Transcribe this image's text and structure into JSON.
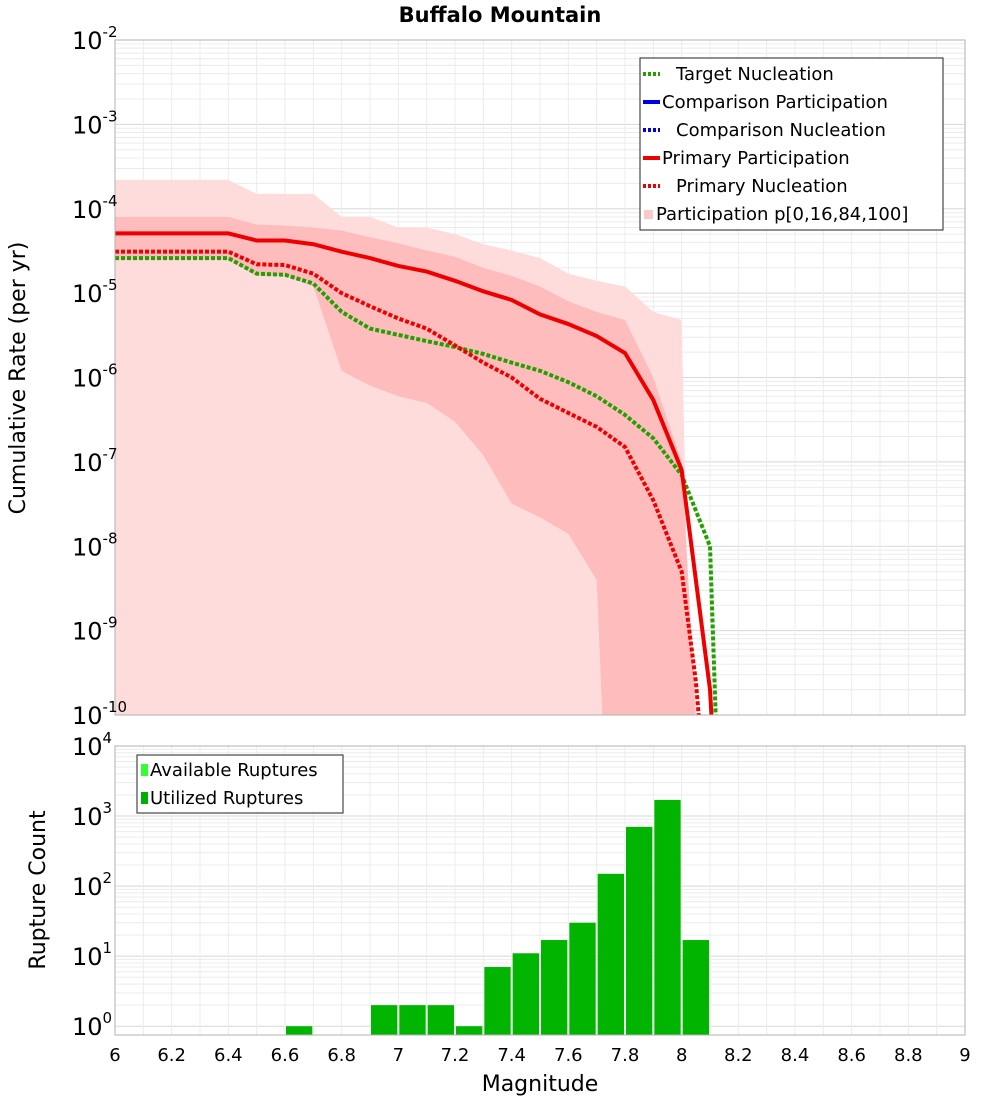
{
  "chart_data": [
    {
      "type": "line",
      "title": "Buffalo Mountain",
      "ylabel": "Cumulative Rate (per yr)",
      "yscale": "log",
      "xlim": [
        6,
        9
      ],
      "ylim_exp": [
        -10,
        -2
      ],
      "y_tick_exponents": [
        "-2",
        "-3",
        "-4",
        "-5",
        "-6",
        "-7",
        "-8",
        "-9",
        "-10"
      ],
      "colors": {
        "target": "#22a000",
        "comparison": "#0000e6",
        "primary": "#ee0000",
        "band_outer": "#ffdcdc",
        "band_inner": "#ffbcbc"
      },
      "legend": [
        {
          "label": "Target Nucleation",
          "style": "dotted",
          "color": "#22a000"
        },
        {
          "label": "Comparison Participation",
          "style": "solid",
          "color": "#0000e6"
        },
        {
          "label": "Comparison Nucleation",
          "style": "dotted",
          "color": "#0000e6"
        },
        {
          "label": "Primary Participation",
          "style": "solid",
          "color": "#ee0000"
        },
        {
          "label": "Primary Nucleation",
          "style": "dotted",
          "color": "#ee0000"
        },
        {
          "label": "Participation p[0,16,84,100]",
          "style": "band",
          "color": "#ffc8c8"
        }
      ],
      "series": [
        {
          "name": "Target Nucleation",
          "style": "dotted",
          "color": "#22a000",
          "points": [
            [
              6.0,
              2.6e-05
            ],
            [
              6.4,
              2.6e-05
            ],
            [
              6.5,
              1.7e-05
            ],
            [
              6.6,
              1.65e-05
            ],
            [
              6.7,
              1.3e-05
            ],
            [
              6.8,
              6e-06
            ],
            [
              6.9,
              3.8e-06
            ],
            [
              7.0,
              3.2e-06
            ],
            [
              7.1,
              2.7e-06
            ],
            [
              7.2,
              2.3e-06
            ],
            [
              7.3,
              1.9e-06
            ],
            [
              7.4,
              1.5e-06
            ],
            [
              7.5,
              1.2e-06
            ],
            [
              7.6,
              8.8e-07
            ],
            [
              7.7,
              6e-07
            ],
            [
              7.8,
              3.6e-07
            ],
            [
              7.9,
              1.9e-07
            ],
            [
              8.0,
              7e-08
            ],
            [
              8.1,
              1e-08
            ],
            [
              8.12,
              1e-10
            ]
          ]
        },
        {
          "name": "Primary Participation",
          "style": "solid",
          "color": "#ee0000",
          "points": [
            [
              6.0,
              5.1e-05
            ],
            [
              6.4,
              5.1e-05
            ],
            [
              6.5,
              4.2e-05
            ],
            [
              6.6,
              4.2e-05
            ],
            [
              6.7,
              3.8e-05
            ],
            [
              6.8,
              3.1e-05
            ],
            [
              6.9,
              2.6e-05
            ],
            [
              7.0,
              2.1e-05
            ],
            [
              7.1,
              1.8e-05
            ],
            [
              7.2,
              1.4e-05
            ],
            [
              7.3,
              1.05e-05
            ],
            [
              7.4,
              8.3e-06
            ],
            [
              7.5,
              5.6e-06
            ],
            [
              7.6,
              4.3e-06
            ],
            [
              7.7,
              3.1e-06
            ],
            [
              7.8,
              1.95e-06
            ],
            [
              7.9,
              5.4e-07
            ],
            [
              8.0,
              8e-08
            ],
            [
              8.1,
              2e-10
            ],
            [
              8.105,
              1e-10
            ]
          ]
        },
        {
          "name": "Primary Nucleation",
          "style": "dotted",
          "color": "#ee0000",
          "points": [
            [
              6.0,
              3.1e-05
            ],
            [
              6.4,
              3.1e-05
            ],
            [
              6.5,
              2.2e-05
            ],
            [
              6.6,
              2.15e-05
            ],
            [
              6.7,
              1.7e-05
            ],
            [
              6.8,
              1e-05
            ],
            [
              6.9,
              7e-06
            ],
            [
              7.0,
              5e-06
            ],
            [
              7.1,
              3.8e-06
            ],
            [
              7.2,
              2.4e-06
            ],
            [
              7.3,
              1.5e-06
            ],
            [
              7.4,
              1e-06
            ],
            [
              7.5,
              5.6e-07
            ],
            [
              7.6,
              3.8e-07
            ],
            [
              7.7,
              2.6e-07
            ],
            [
              7.8,
              1.5e-07
            ],
            [
              7.9,
              3.5e-08
            ],
            [
              8.0,
              5e-09
            ],
            [
              8.05,
              2.5e-10
            ],
            [
              8.06,
              1e-10
            ]
          ]
        }
      ],
      "bands": [
        {
          "name": "Participation p0-p100",
          "color": "#ffdcdc",
          "upper": [
            [
              6.0,
              0.00022
            ],
            [
              6.4,
              0.00022
            ],
            [
              6.5,
              0.00015
            ],
            [
              6.7,
              0.00015
            ],
            [
              6.8,
              8e-05
            ],
            [
              6.9,
              8e-05
            ],
            [
              7.0,
              6e-05
            ],
            [
              7.1,
              6e-05
            ],
            [
              7.2,
              5e-05
            ],
            [
              7.3,
              3.8e-05
            ],
            [
              7.4,
              3.2e-05
            ],
            [
              7.5,
              2.6e-05
            ],
            [
              7.6,
              1.7e-05
            ],
            [
              7.7,
              1.4e-05
            ],
            [
              7.8,
              1.2e-05
            ],
            [
              7.9,
              6e-06
            ],
            [
              8.0,
              4.8e-06
            ],
            [
              8.03,
              1e-10
            ]
          ],
          "lower": [
            [
              6.0,
              1e-10
            ],
            [
              8.03,
              1e-10
            ]
          ]
        },
        {
          "name": "Participation p16-p84",
          "color": "#ffbcbc",
          "upper": [
            [
              6.0,
              8e-05
            ],
            [
              6.4,
              8e-05
            ],
            [
              6.5,
              6.5e-05
            ],
            [
              6.6,
              6.3e-05
            ],
            [
              6.7,
              6e-05
            ],
            [
              6.8,
              5.5e-05
            ],
            [
              6.9,
              4.6e-05
            ],
            [
              7.0,
              3.9e-05
            ],
            [
              7.1,
              3.2e-05
            ],
            [
              7.2,
              2.7e-05
            ],
            [
              7.3,
              2e-05
            ],
            [
              7.4,
              1.6e-05
            ],
            [
              7.5,
              1.2e-05
            ],
            [
              7.6,
              8e-06
            ],
            [
              7.7,
              6e-06
            ],
            [
              7.8,
              4.8e-06
            ],
            [
              7.9,
              1e-06
            ],
            [
              8.0,
              1e-07
            ],
            [
              8.05,
              1e-10
            ]
          ],
          "lower": [
            [
              6.0,
              2.5e-05
            ],
            [
              6.4,
              2.5e-05
            ],
            [
              6.5,
              1.6e-05
            ],
            [
              6.6,
              1.6e-05
            ],
            [
              6.7,
              1.2e-05
            ],
            [
              6.8,
              1.2e-06
            ],
            [
              6.9,
              8e-07
            ],
            [
              7.0,
              6e-07
            ],
            [
              7.1,
              5e-07
            ],
            [
              7.2,
              3e-07
            ],
            [
              7.3,
              1.2e-07
            ],
            [
              7.4,
              3.2e-08
            ],
            [
              7.5,
              2.2e-08
            ],
            [
              7.6,
              1.4e-08
            ],
            [
              7.7,
              4e-09
            ],
            [
              7.72,
              1e-10
            ]
          ]
        }
      ]
    },
    {
      "type": "bar",
      "ylabel": "Rupture Count",
      "xlabel": "Magnitude",
      "yscale": "log",
      "xlim": [
        6,
        9
      ],
      "ylim": [
        0.75,
        10000
      ],
      "y_tick_exponents": [
        "4",
        "3",
        "2",
        "1",
        "0"
      ],
      "x_ticks": [
        "6",
        "6.2",
        "6.4",
        "6.6",
        "6.8",
        "7",
        "7.2",
        "7.4",
        "7.6",
        "7.8",
        "8",
        "8.2",
        "8.4",
        "8.6",
        "8.8",
        "9"
      ],
      "legend": [
        {
          "label": "Available Ruptures",
          "color": "#33ff33"
        },
        {
          "label": "Utilized Ruptures",
          "color": "#00b000"
        }
      ],
      "bar_color": "#00b400",
      "bin_width": 0.1,
      "bars": [
        {
          "x": 6.65,
          "value": 1
        },
        {
          "x": 6.95,
          "value": 2
        },
        {
          "x": 7.05,
          "value": 2
        },
        {
          "x": 7.15,
          "value": 2
        },
        {
          "x": 7.25,
          "value": 1
        },
        {
          "x": 7.35,
          "value": 7
        },
        {
          "x": 7.45,
          "value": 11
        },
        {
          "x": 7.55,
          "value": 17
        },
        {
          "x": 7.65,
          "value": 30
        },
        {
          "x": 7.75,
          "value": 150
        },
        {
          "x": 7.85,
          "value": 700
        },
        {
          "x": 7.95,
          "value": 1700
        },
        {
          "x": 8.05,
          "value": 17
        }
      ]
    }
  ]
}
